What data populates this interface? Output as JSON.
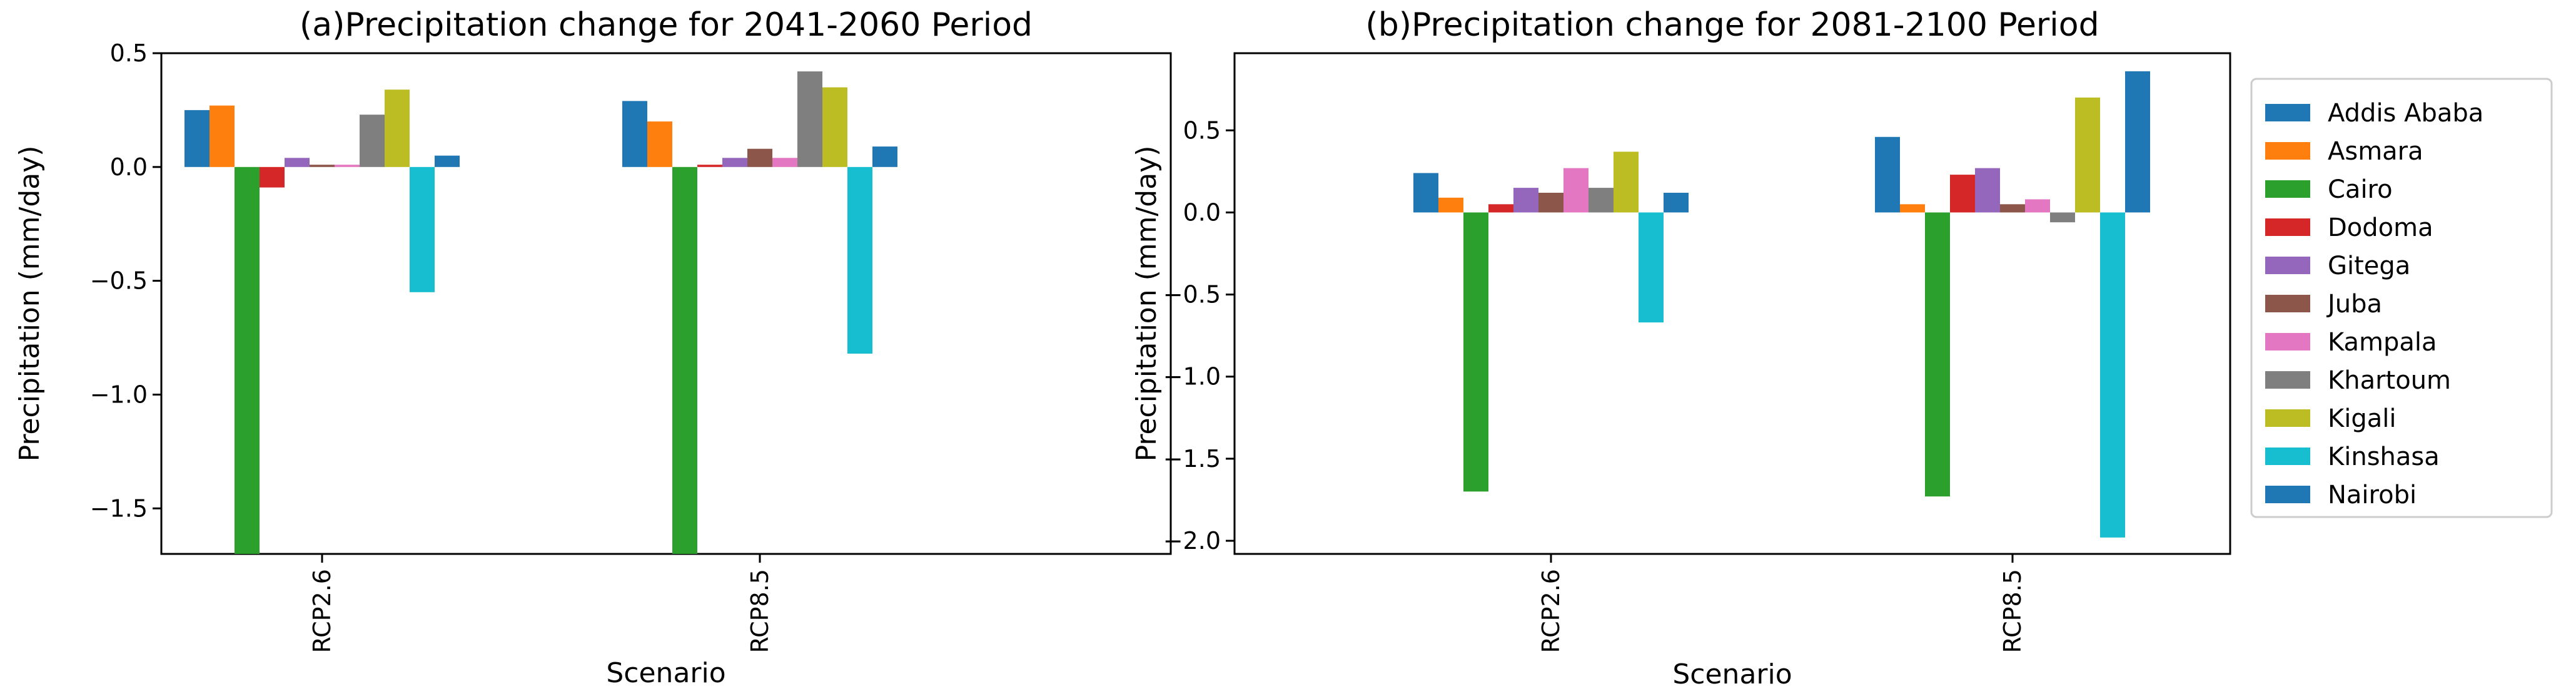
{
  "legend": {
    "entries": [
      "Addis Ababa",
      "Asmara",
      "Cairo",
      "Dodoma",
      "Gitega",
      "Juba",
      "Kampala",
      "Khartoum",
      "Kigali",
      "Kinshasa",
      "Nairobi"
    ],
    "colors": [
      "#1f77b4",
      "#ff7f0e",
      "#2ca02c",
      "#d62728",
      "#9467bd",
      "#8c564b",
      "#e377c2",
      "#7f7f7f",
      "#bcbd22",
      "#17becf",
      "#1f77b4"
    ],
    "position": "right"
  },
  "chart_data": [
    {
      "type": "bar",
      "title": "(a)Precipitation change for 2041-2060 Period",
      "xlabel": "Scenario",
      "ylabel": "Precipitation (mm/day)",
      "categories": [
        "RCP2.6",
        "RCP8.5"
      ],
      "ylim": [
        -1.7,
        0.5
      ],
      "yticks": [
        0.5,
        0.0,
        -0.5,
        -1.0,
        -1.5
      ],
      "ytick_labels": [
        "0.5",
        "0.0",
        "−0.5",
        "−1.0",
        "−1.5"
      ],
      "series": [
        {
          "name": "Addis Ababa",
          "values": [
            0.25,
            0.29
          ]
        },
        {
          "name": "Asmara",
          "values": [
            0.27,
            0.2
          ]
        },
        {
          "name": "Cairo",
          "values": [
            -1.7,
            -1.7
          ]
        },
        {
          "name": "Dodoma",
          "values": [
            -0.09,
            0.01
          ]
        },
        {
          "name": "Gitega",
          "values": [
            0.04,
            0.04
          ]
        },
        {
          "name": "Juba",
          "values": [
            0.01,
            0.08
          ]
        },
        {
          "name": "Kampala",
          "values": [
            0.01,
            0.04
          ]
        },
        {
          "name": "Khartoum",
          "values": [
            0.23,
            0.42
          ]
        },
        {
          "name": "Kigali",
          "values": [
            0.34,
            0.35
          ]
        },
        {
          "name": "Kinshasa",
          "values": [
            -0.55,
            -0.82
          ]
        },
        {
          "name": "Nairobi",
          "values": [
            0.05,
            0.09
          ]
        }
      ]
    },
    {
      "type": "bar",
      "title": "(b)Precipitation change for 2081-2100 Period",
      "xlabel": "Scenario",
      "ylabel": "Precipitation (mm/day)",
      "categories": [
        "RCP2.6",
        "RCP8.5"
      ],
      "ylim": [
        -2.08,
        0.97
      ],
      "yticks": [
        0.5,
        0.0,
        -0.5,
        -1.0,
        -1.5,
        -2.0
      ],
      "ytick_labels": [
        "0.5",
        "0.0",
        "−0.5",
        "−1.0",
        "−1.5",
        "−2.0"
      ],
      "series": [
        {
          "name": "Addis Ababa",
          "values": [
            0.24,
            0.46
          ]
        },
        {
          "name": "Asmara",
          "values": [
            0.09,
            0.05
          ]
        },
        {
          "name": "Cairo",
          "values": [
            -1.7,
            -1.73
          ]
        },
        {
          "name": "Dodoma",
          "values": [
            0.05,
            0.23
          ]
        },
        {
          "name": "Gitega",
          "values": [
            0.15,
            0.27
          ]
        },
        {
          "name": "Juba",
          "values": [
            0.12,
            0.05
          ]
        },
        {
          "name": "Kampala",
          "values": [
            0.27,
            0.08
          ]
        },
        {
          "name": "Khartoum",
          "values": [
            0.15,
            -0.06
          ]
        },
        {
          "name": "Kigali",
          "values": [
            0.37,
            0.7
          ]
        },
        {
          "name": "Kinshasa",
          "values": [
            -0.67,
            -1.98
          ]
        },
        {
          "name": "Nairobi",
          "values": [
            0.12,
            0.86
          ]
        }
      ]
    }
  ]
}
